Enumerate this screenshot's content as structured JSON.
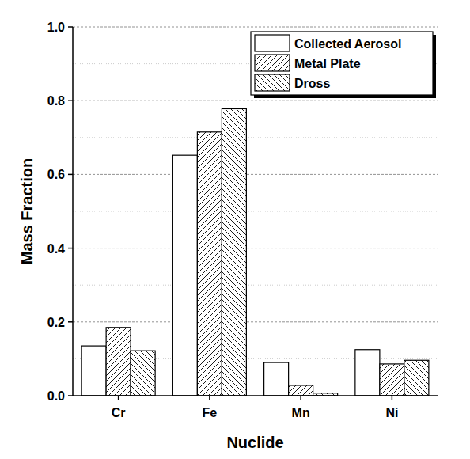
{
  "chart_data": {
    "type": "bar",
    "x_label": "Nuclide",
    "y_label": "Mass Fraction",
    "categories": [
      "Cr",
      "Fe",
      "Mn",
      "Ni"
    ],
    "series": [
      {
        "name": "Collected Aerosol",
        "color": "#ffffff",
        "values": [
          0.135,
          0.652,
          0.09,
          0.125
        ]
      },
      {
        "name": "Metal Plate",
        "color": "#ffffff",
        "values": [
          0.185,
          0.715,
          0.028,
          0.086
        ]
      },
      {
        "name": "Dross",
        "color": "#ffffff",
        "values": [
          0.122,
          0.778,
          0.007,
          0.096
        ]
      }
    ],
    "ylim": [
      0,
      1
    ],
    "yticks": [
      {
        "value": 0,
        "label": "0.0"
      },
      0.2,
      0.4,
      0.6,
      0.8,
      {
        "value": 1,
        "label": "1.0"
      }
    ],
    "grid": true,
    "legend": "upper right"
  }
}
